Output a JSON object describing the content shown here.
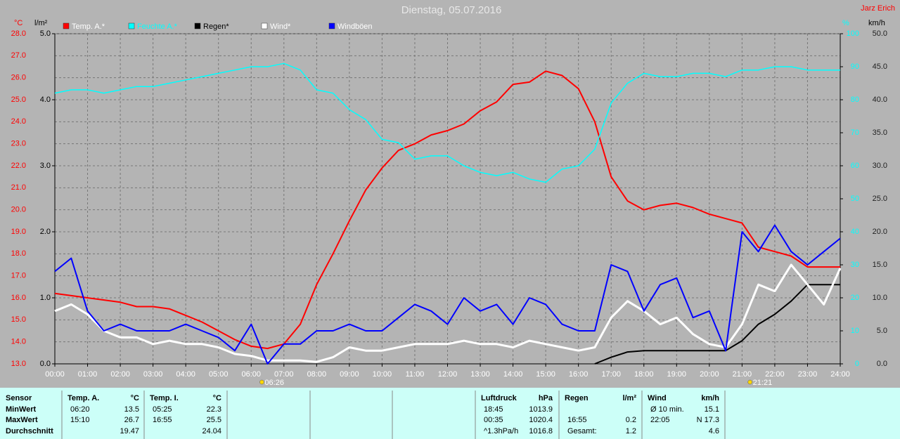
{
  "chart_data": {
    "type": "line",
    "title": "Dienstag, 05.07.2016",
    "author": "Jarz Erich",
    "x": [
      0,
      0.5,
      1,
      1.5,
      2,
      2.5,
      3,
      3.5,
      4,
      4.5,
      5,
      5.5,
      6,
      6.5,
      7,
      7.5,
      8,
      8.5,
      9,
      9.5,
      10,
      10.5,
      11,
      11.5,
      12,
      12.5,
      13,
      13.5,
      14,
      14.5,
      15,
      15.5,
      16,
      16.5,
      17,
      17.5,
      18,
      18.5,
      19,
      19.5,
      20,
      20.5,
      21,
      21.5,
      22,
      22.5,
      23,
      23.5,
      24
    ],
    "xlim": [
      0,
      24
    ],
    "xticks": [
      {
        "value": 0,
        "label": "00:00"
      },
      {
        "value": 1,
        "label": "01:00"
      },
      {
        "value": 2,
        "label": "02:00"
      },
      {
        "value": 3,
        "label": "03:00"
      },
      {
        "value": 4,
        "label": "04:00"
      },
      {
        "value": 5,
        "label": "05:00"
      },
      {
        "value": 6,
        "label": "06:00"
      },
      {
        "value": 7,
        "label": "07:00"
      },
      {
        "value": 8,
        "label": "08:00"
      },
      {
        "value": 9,
        "label": "09:00"
      },
      {
        "value": 10,
        "label": "10:00"
      },
      {
        "value": 11,
        "label": "11:00"
      },
      {
        "value": 12,
        "label": "12:00"
      },
      {
        "value": 13,
        "label": "13:00"
      },
      {
        "value": 14,
        "label": "14:00"
      },
      {
        "value": 15,
        "label": "15:00"
      },
      {
        "value": 16,
        "label": "16:00"
      },
      {
        "value": 17,
        "label": "17:00"
      },
      {
        "value": 18,
        "label": "18:00"
      },
      {
        "value": 19,
        "label": "19:00"
      },
      {
        "value": 20,
        "label": "20:00"
      },
      {
        "value": 21,
        "label": "21:00"
      },
      {
        "value": 22,
        "label": "22:00"
      },
      {
        "value": 23,
        "label": "23:00"
      },
      {
        "value": 24,
        "label": "24:00"
      }
    ],
    "yunit": "°C",
    "ylim": [
      13,
      28
    ],
    "yticks": [
      {
        "value": 13,
        "label": "13.0"
      },
      {
        "value": 14,
        "label": "14.0"
      },
      {
        "value": 15,
        "label": "15.0"
      },
      {
        "value": 16,
        "label": "16.0"
      },
      {
        "value": 17,
        "label": "17.0"
      },
      {
        "value": 18,
        "label": "18.0"
      },
      {
        "value": 19,
        "label": "19.0"
      },
      {
        "value": 20,
        "label": "20.0"
      },
      {
        "value": 21,
        "label": "21.0"
      },
      {
        "value": 22,
        "label": "22.0"
      },
      {
        "value": 23,
        "label": "23.0"
      },
      {
        "value": 24,
        "label": "24.0"
      },
      {
        "value": 25,
        "label": "25.0"
      },
      {
        "value": 26,
        "label": "26.0"
      },
      {
        "value": 27,
        "label": "27.0"
      },
      {
        "value": 28,
        "label": "28.0"
      }
    ],
    "y2unit": "l/m²",
    "y2lim": [
      0,
      5
    ],
    "y2ticks": [
      {
        "value": 0,
        "label": "0.0"
      },
      {
        "value": 1,
        "label": "1.0"
      },
      {
        "value": 2,
        "label": "2.0"
      },
      {
        "value": 3,
        "label": "3.0"
      },
      {
        "value": 4,
        "label": "4.0"
      },
      {
        "value": 5,
        "label": "5.0"
      }
    ],
    "y3unit": "%",
    "y3lim": [
      0,
      100
    ],
    "y3ticks": [
      0,
      10,
      20,
      30,
      40,
      50,
      60,
      70,
      80,
      90,
      100
    ],
    "y4unit": "km/h",
    "y4lim": [
      0,
      50
    ],
    "y4ticks": [
      {
        "value": 0,
        "label": "0.0"
      },
      {
        "value": 5,
        "label": "5.0"
      },
      {
        "value": 10,
        "label": "10.0"
      },
      {
        "value": 15,
        "label": "15.0"
      },
      {
        "value": 20,
        "label": "20.0"
      },
      {
        "value": 25,
        "label": "25.0"
      },
      {
        "value": 30,
        "label": "30.0"
      },
      {
        "value": 35,
        "label": "35.0"
      },
      {
        "value": 40,
        "label": "40.0"
      },
      {
        "value": 45,
        "label": "45.0"
      },
      {
        "value": 50,
        "label": "50.0"
      }
    ],
    "grid": true,
    "series": [
      {
        "name": "Temp. A.*",
        "color": "#ff0000",
        "axis": "y",
        "width": 2,
        "values": [
          16.2,
          16.1,
          16.0,
          15.9,
          15.8,
          15.6,
          15.6,
          15.5,
          15.2,
          14.9,
          14.5,
          14.1,
          13.8,
          13.7,
          13.9,
          14.8,
          16.6,
          18.0,
          19.5,
          20.9,
          21.9,
          22.7,
          23.0,
          23.4,
          23.6,
          23.9,
          24.5,
          24.9,
          25.7,
          25.8,
          26.3,
          26.1,
          25.5,
          24.0,
          21.5,
          20.4,
          20.0,
          20.2,
          20.3,
          20.1,
          19.8,
          19.6,
          19.4,
          18.3,
          18.1,
          17.9,
          17.4,
          17.4,
          17.4
        ]
      },
      {
        "name": "Feuchte A.*",
        "color": "#00ffff",
        "axis": "y3",
        "width": 1.5,
        "values": [
          82,
          83,
          83,
          82,
          83,
          84,
          84,
          85,
          86,
          87,
          88,
          89,
          90,
          90,
          91,
          89,
          83,
          82,
          77,
          74,
          68,
          67,
          62,
          63,
          63,
          60,
          58,
          57,
          58,
          56,
          55,
          59,
          60,
          65,
          79,
          85,
          88,
          87,
          87,
          88,
          88,
          87,
          89,
          89,
          90,
          90,
          89,
          89,
          89
        ]
      },
      {
        "name": "Regen*",
        "color": "#000000",
        "axis": "y2",
        "width": 2,
        "values": [
          null,
          null,
          null,
          null,
          null,
          null,
          null,
          null,
          null,
          null,
          null,
          null,
          null,
          null,
          null,
          null,
          null,
          null,
          null,
          null,
          null,
          null,
          null,
          null,
          null,
          null,
          null,
          null,
          null,
          null,
          null,
          null,
          null,
          0,
          0.1,
          0.18,
          0.2,
          0.2,
          0.2,
          0.2,
          0.2,
          0.2,
          0.35,
          0.6,
          0.75,
          0.95,
          1.2,
          1.2,
          1.2
        ]
      },
      {
        "name": "Wind*",
        "color": "#ffffff",
        "axis": "y4",
        "width": 3,
        "values": [
          8,
          9,
          7.5,
          5,
          4,
          4,
          3,
          3.5,
          3,
          3,
          2.5,
          1.5,
          1.2,
          0.5,
          0.5,
          0.5,
          0.3,
          1,
          2.5,
          2,
          2,
          2.5,
          3,
          3,
          3,
          3.5,
          3,
          3,
          2.5,
          3.5,
          3,
          2.5,
          2,
          2.5,
          7,
          9.5,
          8,
          6,
          7,
          4.5,
          3,
          2.5,
          6,
          12,
          11,
          15,
          12,
          9,
          14.5
        ]
      },
      {
        "name": "Windböen",
        "color": "#0000ff",
        "axis": "y4",
        "width": 2,
        "values": [
          14,
          16,
          8,
          5,
          6,
          5,
          5,
          5,
          6,
          5,
          4,
          2,
          6,
          0,
          3,
          3,
          5,
          5,
          6,
          5,
          5,
          7,
          9,
          8,
          6,
          10,
          8,
          9,
          6,
          10,
          9,
          6,
          5,
          5,
          15,
          14,
          8,
          12,
          13,
          7,
          8,
          2,
          20,
          17,
          21,
          17,
          15,
          17,
          19
        ]
      }
    ],
    "markers": [
      {
        "label": "06:26",
        "x": 6.4333
      },
      {
        "label": "21:21",
        "x": 21.35
      }
    ]
  },
  "table": {
    "sensor_header": "Sensor",
    "row_labels": [
      "MinWert",
      "MaxWert",
      "Durchschnitt"
    ],
    "sections": [
      {
        "header": "Temp. A.",
        "unit": "°C",
        "rows": [
          [
            "06:20",
            13.5
          ],
          [
            "15:10",
            26.7
          ],
          [
            null,
            19.47
          ]
        ]
      },
      {
        "header": "Temp. I.",
        "unit": "°C",
        "rows": [
          [
            "05:25",
            22.3
          ],
          [
            "16:55",
            25.5
          ],
          [
            null,
            24.04
          ]
        ]
      },
      {
        "header": "Luftdruck",
        "unit": "hPa",
        "rows": [
          [
            "18:45",
            1013.9
          ],
          [
            "00:35",
            1020.4
          ],
          [
            "^1.3hPa/h",
            1016.8
          ]
        ]
      },
      {
        "header": "Regen",
        "unit": "l/m²",
        "rows": [
          [
            null,
            null
          ],
          [
            "16:55",
            0.2
          ],
          [
            "Gesamt:",
            1.2
          ]
        ]
      },
      {
        "header": "Wind",
        "unit": "km/h",
        "rows": [
          [
            "Ø 10 min.",
            15.1
          ],
          [
            "22:05",
            "N 17.3"
          ],
          [
            null,
            4.6
          ]
        ]
      }
    ]
  }
}
